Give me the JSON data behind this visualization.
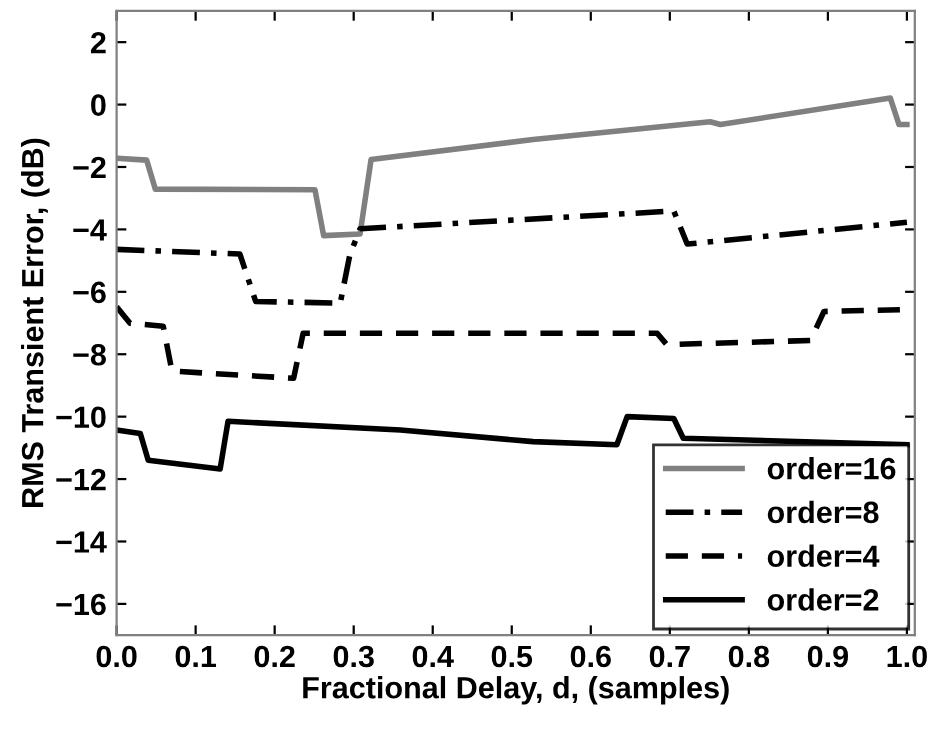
{
  "chart_data": {
    "type": "line",
    "xlabel": "Fractional Delay, d, (samples)",
    "ylabel": "RMS Transient Error, (dB)",
    "xlim": [
      0,
      1.01
    ],
    "ylim": [
      -17,
      3
    ],
    "xticks": [
      {
        "value": 0,
        "label": "0.0"
      },
      0.1,
      0.2,
      0.3,
      0.4,
      0.5,
      0.6,
      0.7,
      0.8,
      0.9,
      {
        "value": 1,
        "label": "1.0"
      }
    ],
    "yticks": [
      -16,
      -14,
      -12,
      -10,
      -8,
      -6,
      -4,
      -2,
      0,
      2
    ],
    "grid": false,
    "legend": "bottom right",
    "series": [
      {
        "name": "order=16",
        "color": "#808080",
        "line_style": "solid",
        "x": [
          0,
          0.038,
          0.049,
          0.251,
          0.262,
          0.308,
          0.322,
          0.527,
          0.751,
          0.764,
          0.979,
          0.99,
          1.0
        ],
        "values": [
          -1.72,
          -1.78,
          -2.71,
          -2.73,
          -4.2,
          -4.15,
          -1.76,
          -1.12,
          -0.55,
          -0.64,
          0.21,
          -0.64,
          -0.64
        ]
      },
      {
        "name": "order=8",
        "color": "#000000",
        "line_style": "dashdot",
        "x": [
          0,
          0.156,
          0.176,
          0.283,
          0.295,
          0.308,
          0.705,
          0.722,
          1.0
        ],
        "values": [
          -4.64,
          -4.79,
          -6.31,
          -6.36,
          -4.83,
          -3.98,
          -3.41,
          -4.47,
          -3.77
        ]
      },
      {
        "name": "order=4",
        "color": "#000000",
        "line_style": "dashed",
        "x": [
          0,
          0.017,
          0.059,
          0.07,
          0.224,
          0.236,
          0.684,
          0.696,
          0.878,
          0.895,
          1.0
        ],
        "values": [
          -6.48,
          -7.01,
          -7.1,
          -8.54,
          -8.77,
          -7.33,
          -7.33,
          -7.69,
          -7.56,
          -6.63,
          -6.57
        ]
      },
      {
        "name": "order=2",
        "color": "#000000",
        "line_style": "solid",
        "x": [
          0,
          0.03,
          0.04,
          0.131,
          0.141,
          0.359,
          0.527,
          0.633,
          0.646,
          0.705,
          0.717,
          1.0
        ],
        "values": [
          -10.43,
          -10.54,
          -11.4,
          -11.68,
          -10.15,
          -10.43,
          -10.8,
          -10.9,
          -10.0,
          -10.06,
          -10.69,
          -10.9
        ]
      }
    ]
  }
}
